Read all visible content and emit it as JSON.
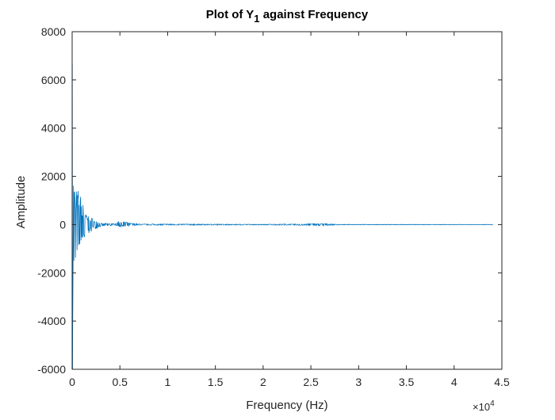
{
  "chart_data": {
    "type": "line",
    "title": {
      "prefix": "Plot of Y",
      "subscript": "1",
      "suffix": " against Frequency"
    },
    "xlabel": "Frequency (Hz)",
    "ylabel": "Amplitude",
    "xlim": [
      0,
      45000
    ],
    "ylim": [
      -6000,
      8000
    ],
    "x_tick_values": [
      0,
      5000,
      10000,
      15000,
      20000,
      25000,
      30000,
      35000,
      40000,
      45000
    ],
    "x_tick_labels": [
      "0",
      "0.5",
      "1",
      "1.5",
      "2",
      "2.5",
      "3",
      "3.5",
      "4",
      "4.5"
    ],
    "x_exponent": {
      "base": "×10",
      "power": "4"
    },
    "y_tick_values": [
      -6000,
      -4000,
      -2000,
      0,
      2000,
      4000,
      6000,
      8000
    ],
    "y_tick_labels": [
      "-6000",
      "-4000",
      "-2000",
      "0",
      "2000",
      "4000",
      "6000",
      "8000"
    ],
    "grid": false,
    "legend": "none",
    "series": [
      {
        "color": "#0072bd",
        "x_range": [
          0,
          44100
        ],
        "peak_max": 6650,
        "peak_min": -6000,
        "envelope": [
          [
            0,
            6650,
            -6000
          ],
          [
            150,
            2100,
            -1800
          ],
          [
            300,
            1700,
            -1750
          ],
          [
            500,
            1550,
            -1550
          ],
          [
            800,
            1400,
            -1450
          ],
          [
            1100,
            900,
            -950
          ],
          [
            1500,
            450,
            -500
          ],
          [
            2000,
            300,
            -300
          ],
          [
            2500,
            150,
            -170
          ],
          [
            3000,
            60,
            -80
          ],
          [
            4500,
            40,
            -40
          ],
          [
            5000,
            170,
            -100
          ],
          [
            5500,
            120,
            -80
          ],
          [
            6000,
            70,
            -60
          ],
          [
            7000,
            25,
            -25
          ],
          [
            20000,
            15,
            -15
          ],
          [
            25000,
            30,
            -30
          ],
          [
            26000,
            45,
            -50
          ],
          [
            26800,
            30,
            -30
          ],
          [
            28000,
            10,
            -10
          ],
          [
            44100,
            6,
            -6
          ]
        ]
      }
    ]
  }
}
